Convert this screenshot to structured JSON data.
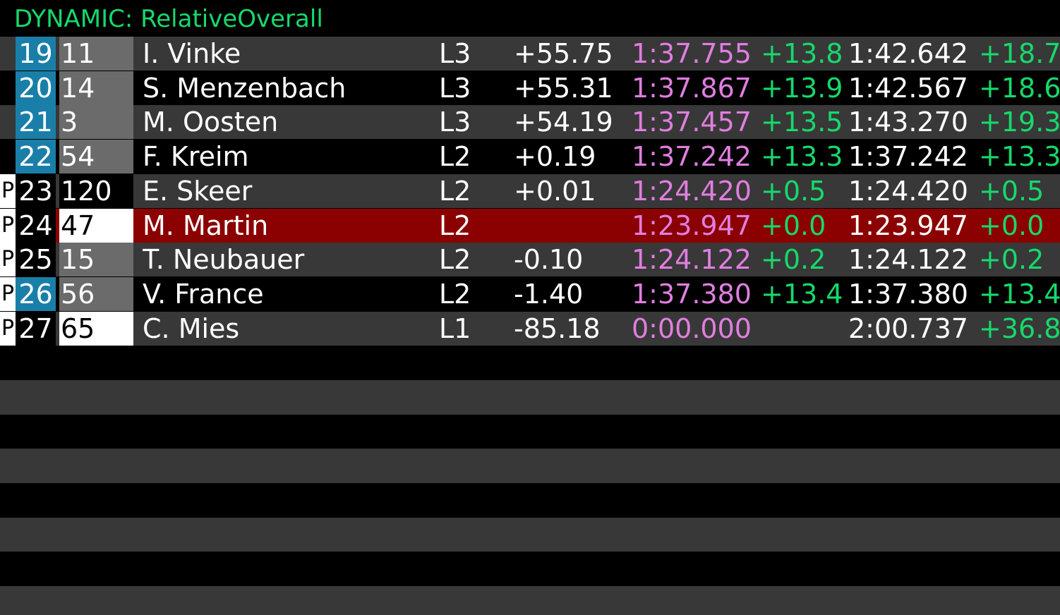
{
  "title": "DYNAMIC: RelativeOverall",
  "colors": {
    "title": "#16d96b",
    "position_blue": "#1a7fa8",
    "number_gray": "#6b6b6b",
    "row_dark": "#383838",
    "row_black": "#000000",
    "player_row": "#8b0000",
    "last_lap_text": "#e07ee0",
    "delta_text": "#16d96b"
  },
  "rows": [
    {
      "pit": "",
      "pos": "19",
      "pos_style": "blue",
      "num": "11",
      "num_style": "gray",
      "name": "I. Vinke",
      "lap": "L3",
      "gap": "+55.75",
      "last": "1:37.755",
      "last_delta": "+13.8",
      "best": "1:42.642",
      "best_delta": "+18.7",
      "player": false
    },
    {
      "pit": "",
      "pos": "20",
      "pos_style": "blue",
      "num": "14",
      "num_style": "gray",
      "name": "S. Menzenbach",
      "lap": "L3",
      "gap": "+55.31",
      "last": "1:37.867",
      "last_delta": "+13.9",
      "best": "1:42.567",
      "best_delta": "+18.6",
      "player": false
    },
    {
      "pit": "",
      "pos": "21",
      "pos_style": "blue",
      "num": "3",
      "num_style": "gray",
      "name": "M. Oosten",
      "lap": "L3",
      "gap": "+54.19",
      "last": "1:37.457",
      "last_delta": "+13.5",
      "best": "1:43.270",
      "best_delta": "+19.3",
      "player": false
    },
    {
      "pit": "",
      "pos": "22",
      "pos_style": "blue",
      "num": "54",
      "num_style": "gray",
      "name": "F. Kreim",
      "lap": "L2",
      "gap": "+0.19",
      "last": "1:37.242",
      "last_delta": "+13.3",
      "best": "1:37.242",
      "best_delta": "+13.3",
      "player": false
    },
    {
      "pit": "P",
      "pos": "23",
      "pos_style": "black",
      "num": "120",
      "num_style": "black",
      "name": "E. Skeer",
      "lap": "L2",
      "gap": "+0.01",
      "last": "1:24.420",
      "last_delta": "+0.5",
      "best": "1:24.420",
      "best_delta": "+0.5",
      "player": false
    },
    {
      "pit": "P",
      "pos": "24",
      "pos_style": "black",
      "num": "47",
      "num_style": "white",
      "name": "M. Martin",
      "lap": "L2",
      "gap": "",
      "last": "1:23.947",
      "last_delta": "+0.0",
      "best": "1:23.947",
      "best_delta": "+0.0",
      "player": true
    },
    {
      "pit": "P",
      "pos": "25",
      "pos_style": "black",
      "num": "15",
      "num_style": "gray",
      "name": "T. Neubauer",
      "lap": "L2",
      "gap": "-0.10",
      "last": "1:24.122",
      "last_delta": "+0.2",
      "best": "1:24.122",
      "best_delta": "+0.2",
      "player": false
    },
    {
      "pit": "P",
      "pos": "26",
      "pos_style": "blue",
      "num": "56",
      "num_style": "gray",
      "name": "V. France",
      "lap": "L2",
      "gap": "-1.40",
      "last": "1:37.380",
      "last_delta": "+13.4",
      "best": "1:37.380",
      "best_delta": "+13.4",
      "player": false
    },
    {
      "pit": "P",
      "pos": "27",
      "pos_style": "black",
      "num": "65",
      "num_style": "white",
      "name": "C. Mies",
      "lap": "L1",
      "gap": "-85.18",
      "last": "0:00.000",
      "last_delta": "",
      "best": "2:00.737",
      "best_delta": "+36.8",
      "player": false
    }
  ]
}
